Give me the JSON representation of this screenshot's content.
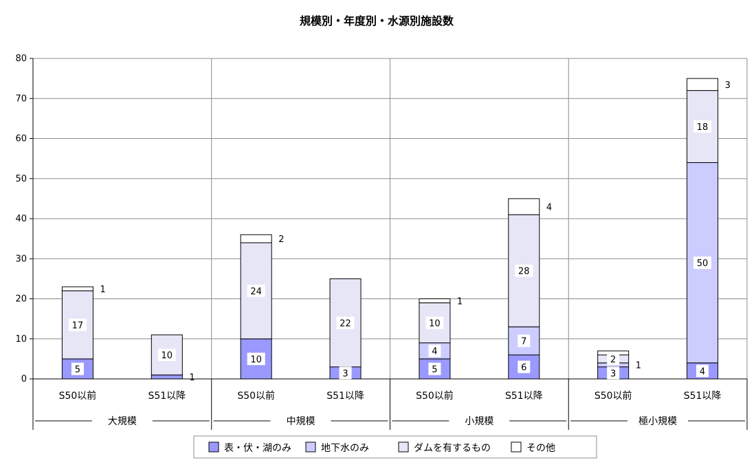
{
  "chart_data": {
    "type": "bar",
    "stacked": true,
    "title": "規模別・年度別・水源別施設数",
    "groups": [
      {
        "name": "大規模",
        "categories": [
          "S50以前",
          "S51以降"
        ]
      },
      {
        "name": "中規模",
        "categories": [
          "S50以前",
          "S51以降"
        ]
      },
      {
        "name": "小規模",
        "categories": [
          "S50以前",
          "S51以降"
        ]
      },
      {
        "name": "極小規模",
        "categories": [
          "S50以前",
          "S51以降"
        ]
      }
    ],
    "categories": [
      "大規模 S50以前",
      "大規模 S51以降",
      "中規模 S50以前",
      "中規模 S51以降",
      "小規模 S50以前",
      "小規模 S51以降",
      "極小規模 S50以前",
      "極小規模 S51以降"
    ],
    "series": [
      {
        "name": "表・伏・湖のみ",
        "color": "#9999ff",
        "values": [
          5,
          1,
          10,
          3,
          5,
          6,
          3,
          4
        ]
      },
      {
        "name": "地下水のみ",
        "color": "#ccccff",
        "values": [
          0,
          0,
          0,
          0,
          4,
          7,
          1,
          50
        ]
      },
      {
        "name": "ダムを有するもの",
        "color": "#e6e6f7",
        "values": [
          17,
          10,
          24,
          22,
          10,
          28,
          2,
          18
        ]
      },
      {
        "name": "その他",
        "color": "#ffffff",
        "values": [
          1,
          0,
          2,
          0,
          1,
          4,
          1,
          3
        ]
      }
    ],
    "data_labels": [
      [
        "5",
        "1",
        "10",
        "3",
        "5",
        "6",
        "3",
        "4"
      ],
      [
        "",
        "",
        "",
        "",
        "4",
        "7",
        "1",
        "50"
      ],
      [
        "17",
        "10",
        "24",
        "22",
        "10",
        "28",
        "2",
        "18"
      ],
      [
        "1",
        "",
        "2",
        "",
        "1",
        "4",
        "",
        "3"
      ]
    ],
    "y_ticks": [
      "0",
      "10",
      "20",
      "30",
      "40",
      "50",
      "60",
      "70",
      "80"
    ],
    "ylim": [
      0,
      80
    ],
    "grid": true,
    "legend_position": "bottom"
  }
}
